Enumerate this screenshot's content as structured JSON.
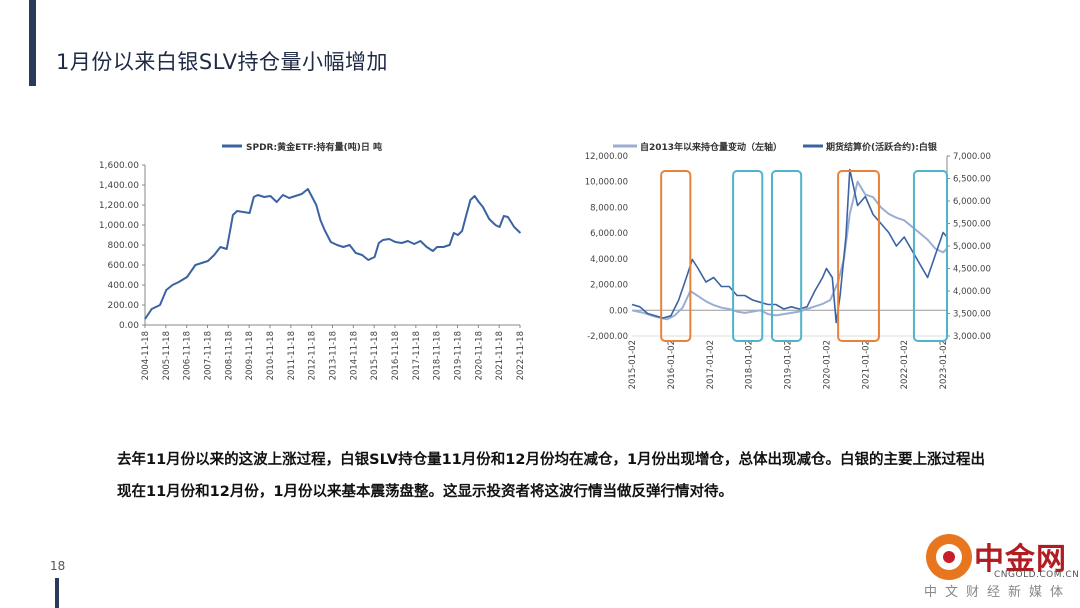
{
  "slide": {
    "title": "1月份以来白银SLV持仓量小幅增加",
    "page_number": "18",
    "body_text": "去年11月份以来的这波上涨过程，白银SLV持仓量11月份和12月份均在减仓，1月份出现增仓，总体出现减仓。白银的主要上涨过程出现在11月份和12月份，1月份以来基本震荡盘整。这显示投资者将这波行情当做反弹行情对待。"
  },
  "logo": {
    "name_cn": "中金网",
    "domain": "CNGOLD.COM.CN",
    "subtitle": "中文财经新媒体"
  },
  "colors": {
    "series_dark": "#3b63a3",
    "series_light": "#9aaed4",
    "box_orange": "#e8823a",
    "box_cyan": "#4fb3cc",
    "accent_bar": "#2b3a5c"
  },
  "chart_data": [
    {
      "type": "line",
      "legend": [
        "SPDR:黄金ETF:持有量(吨)日 吨"
      ],
      "x_ticks": [
        "2004-11-18",
        "2005-11-18",
        "2006-11-18",
        "2007-11-18",
        "2008-11-18",
        "2009-11-18",
        "2010-11-18",
        "2011-11-18",
        "2012-11-18",
        "2013-11-18",
        "2014-11-18",
        "2015-11-18",
        "2016-11-18",
        "2017-11-18",
        "2018-11-18",
        "2019-11-18",
        "2020-11-18",
        "2021-11-18",
        "2022-11-18"
      ],
      "y_ticks": [
        "0.00",
        "200.00",
        "400.00",
        "600.00",
        "800.00",
        "1,000.00",
        "1,200.00",
        "1,400.00",
        "1,600.00"
      ],
      "ylim": [
        0,
        1600
      ],
      "series": [
        {
          "name": "SPDR:黄金ETF:持有量(吨)日 吨",
          "x": [
            2004.88,
            2005.2,
            2005.6,
            2005.9,
            2006.2,
            2006.5,
            2006.9,
            2007.3,
            2007.6,
            2007.9,
            2008.2,
            2008.5,
            2008.8,
            2009.0,
            2009.1,
            2009.3,
            2009.6,
            2009.9,
            2010.1,
            2010.3,
            2010.6,
            2010.9,
            2011.2,
            2011.5,
            2011.8,
            2012.1,
            2012.4,
            2012.7,
            2012.9,
            2013.1,
            2013.3,
            2013.5,
            2013.8,
            2014.1,
            2014.4,
            2014.7,
            2015.0,
            2015.3,
            2015.6,
            2015.9,
            2016.1,
            2016.3,
            2016.6,
            2016.9,
            2017.2,
            2017.5,
            2017.8,
            2018.1,
            2018.4,
            2018.7,
            2018.9,
            2019.2,
            2019.5,
            2019.7,
            2019.9,
            2020.1,
            2020.3,
            2020.5,
            2020.7,
            2020.9,
            2021.1,
            2021.4,
            2021.7,
            2021.9,
            2022.1,
            2022.3,
            2022.6,
            2022.9
          ],
          "values": [
            60,
            160,
            200,
            350,
            400,
            430,
            480,
            600,
            620,
            640,
            700,
            780,
            760,
            980,
            1100,
            1140,
            1130,
            1120,
            1280,
            1300,
            1280,
            1290,
            1230,
            1300,
            1270,
            1290,
            1310,
            1360,
            1280,
            1200,
            1050,
            950,
            830,
            800,
            780,
            800,
            720,
            700,
            650,
            680,
            820,
            850,
            860,
            830,
            820,
            840,
            810,
            840,
            780,
            740,
            780,
            780,
            800,
            920,
            900,
            940,
            1100,
            1250,
            1290,
            1230,
            1180,
            1060,
            1000,
            980,
            1090,
            1080,
            980,
            920
          ]
        }
      ]
    },
    {
      "type": "line",
      "legend": [
        "自2013年以来持仓量变动（左轴）",
        "期货结算价(活跃合约):白银"
      ],
      "x_ticks": [
        "2015-01-02",
        "2016-01-02",
        "2017-01-02",
        "2018-01-02",
        "2019-01-02",
        "2020-01-02",
        "2021-01-02",
        "2022-01-02",
        "2023-01-02"
      ],
      "y_left_ticks": [
        "-2,000.00",
        "0.00",
        "2,000.00",
        "4,000.00",
        "6,000.00",
        "8,000.00",
        "10,000.00",
        "12,000.00"
      ],
      "y_right_ticks": [
        "3,000.00",
        "3,500.00",
        "4,000.00",
        "4,500.00",
        "5,000.00",
        "5,500.00",
        "6,000.00",
        "6,500.00",
        "7,000.00"
      ],
      "ylim_left": [
        -2000,
        12000
      ],
      "ylim_right": [
        3000,
        7000
      ],
      "highlight_boxes": [
        {
          "from": 2015.75,
          "to": 2016.5,
          "color": "orange"
        },
        {
          "from": 2017.6,
          "to": 2018.35,
          "color": "cyan"
        },
        {
          "from": 2018.6,
          "to": 2019.35,
          "color": "cyan"
        },
        {
          "from": 2020.3,
          "to": 2021.35,
          "color": "orange"
        },
        {
          "from": 2022.25,
          "to": 2023.1,
          "color": "cyan"
        }
      ],
      "series": [
        {
          "name": "自2013年以来持仓量变动（左轴）",
          "axis": "left",
          "x": [
            2015.0,
            2015.3,
            2015.6,
            2015.9,
            2016.1,
            2016.3,
            2016.5,
            2016.7,
            2016.9,
            2017.1,
            2017.3,
            2017.5,
            2017.7,
            2017.9,
            2018.1,
            2018.3,
            2018.5,
            2018.7,
            2018.9,
            2019.1,
            2019.3,
            2019.5,
            2019.7,
            2019.9,
            2020.1,
            2020.2,
            2020.3,
            2020.45,
            2020.6,
            2020.8,
            2021.0,
            2021.2,
            2021.4,
            2021.6,
            2021.8,
            2022.0,
            2022.2,
            2022.4,
            2022.6,
            2022.8,
            2023.0,
            2023.1
          ],
          "values": [
            0,
            -200,
            -500,
            -700,
            -400,
            200,
            1500,
            1100,
            700,
            400,
            200,
            100,
            -100,
            -200,
            -100,
            0,
            -300,
            -400,
            -300,
            -200,
            -100,
            100,
            300,
            500,
            800,
            1500,
            2200,
            4000,
            7500,
            10000,
            9000,
            8800,
            8000,
            7500,
            7200,
            7000,
            6500,
            6000,
            5500,
            4800,
            4500,
            4800
          ]
        },
        {
          "name": "期货结算价(活跃合约):白银",
          "axis": "right",
          "x": [
            2015.0,
            2015.2,
            2015.4,
            2015.6,
            2015.8,
            2016.0,
            2016.2,
            2016.4,
            2016.55,
            2016.7,
            2016.9,
            2017.1,
            2017.3,
            2017.5,
            2017.7,
            2017.9,
            2018.1,
            2018.3,
            2018.5,
            2018.7,
            2018.9,
            2019.1,
            2019.3,
            2019.5,
            2019.7,
            2019.9,
            2020.0,
            2020.15,
            2020.25,
            2020.35,
            2020.5,
            2020.6,
            2020.8,
            2021.0,
            2021.2,
            2021.4,
            2021.6,
            2021.8,
            2022.0,
            2022.2,
            2022.4,
            2022.6,
            2022.8,
            2023.0,
            2023.1
          ],
          "values": [
            3700,
            3650,
            3500,
            3450,
            3400,
            3450,
            3800,
            4300,
            4700,
            4500,
            4200,
            4300,
            4100,
            4100,
            3900,
            3900,
            3800,
            3750,
            3700,
            3700,
            3600,
            3650,
            3600,
            3650,
            4000,
            4300,
            4500,
            4300,
            3300,
            3900,
            5200,
            6700,
            5900,
            6100,
            5700,
            5500,
            5300,
            5000,
            5200,
            4900,
            4600,
            4300,
            4800,
            5300,
            5200
          ]
        }
      ]
    }
  ]
}
